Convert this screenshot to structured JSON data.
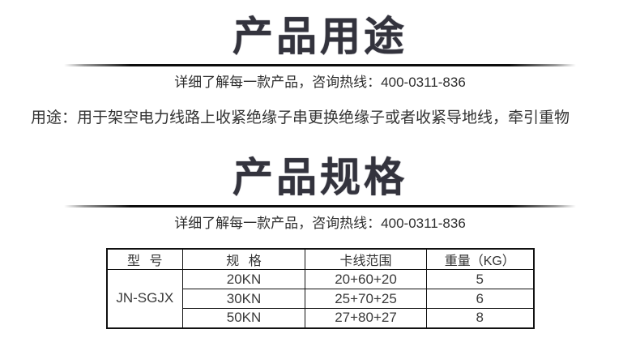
{
  "page": {
    "background_color": "#ffffff",
    "title_color": "#33333d",
    "text_color": "#333333",
    "table_border_color": "#111111"
  },
  "section_usage": {
    "title": "产品用途",
    "subtitle": "详细了解每一款产品，咨询热线：400-0311-836",
    "hotline": "400-0311-836",
    "usage_text": "用途：用于架空电力线路上收紧绝缘子串更换绝缘子或者收紧导地线，牵引重物"
  },
  "section_specs": {
    "title": "产品规格",
    "subtitle": "详细了解每一款产品，咨询热线：400-0311-836",
    "hotline": "400-0311-836",
    "table": {
      "headers": [
        "型 号",
        "规 格",
        "卡线范围",
        "重量（KG）"
      ],
      "model": "JN-SGJX",
      "rows": [
        {
          "spec": "20KN",
          "range": "20+60+20",
          "weight": "5"
        },
        {
          "spec": "30KN",
          "range": "25+70+25",
          "weight": "6"
        },
        {
          "spec": "50KN",
          "range": "27+80+27",
          "weight": "8"
        }
      ]
    }
  }
}
